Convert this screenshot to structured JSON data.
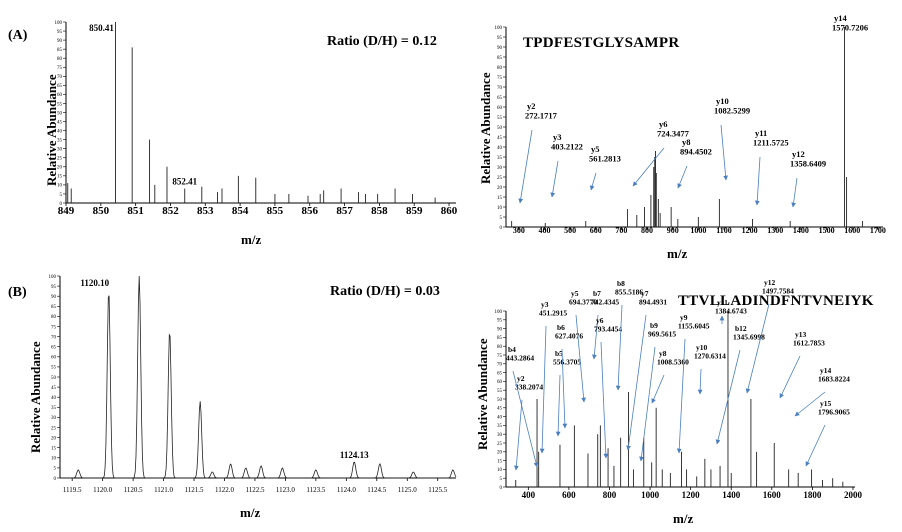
{
  "panel_a": {
    "letter": "(A)",
    "ratio": "Ratio (D/H) = 0.12",
    "peptide": "TPDFESTGLYSAMPR",
    "ylabel_left": "Relative Abundance",
    "ylabel_right": "Relative Abundance",
    "xlabel_left": "m/z",
    "xlabel_right": "m/z"
  },
  "panel_b": {
    "letter": "(B)",
    "ratio": "Ratio (D/H) = 0.03",
    "peptide": "TTVLLADINDFNTVNEIYK",
    "ylabel_left": "Relative Abundance",
    "ylabel_right": "Relative Abundance",
    "xlabel_left": "m/z",
    "xlabel_right": "m/z"
  },
  "chart_data": [
    {
      "id": "a_left",
      "type": "bar",
      "xlim": [
        849,
        860.2
      ],
      "ylim": [
        0,
        100
      ],
      "xticks": [
        849,
        850,
        851,
        852,
        853,
        854,
        855,
        856,
        857,
        858,
        859,
        860
      ],
      "yticks": [
        0,
        5,
        10,
        15,
        20,
        25,
        30,
        35,
        40,
        45,
        50,
        55,
        60,
        65,
        70,
        75,
        80,
        85,
        90,
        95,
        100
      ],
      "xlabel": "m/z",
      "ylabel": "Relative Abundance",
      "peaks": [
        [
          849.05,
          11
        ],
        [
          849.15,
          8
        ],
        [
          850.42,
          100
        ],
        [
          850.9,
          86
        ],
        [
          851.4,
          35
        ],
        [
          851.55,
          10
        ],
        [
          851.9,
          20
        ],
        [
          852.41,
          8
        ],
        [
          852.9,
          9
        ],
        [
          853.35,
          6
        ],
        [
          853.48,
          8
        ],
        [
          853.95,
          15
        ],
        [
          854.45,
          14
        ],
        [
          855.0,
          5
        ],
        [
          855.4,
          5
        ],
        [
          855.95,
          4
        ],
        [
          856.3,
          5
        ],
        [
          856.4,
          7
        ],
        [
          856.9,
          8
        ],
        [
          857.4,
          6
        ],
        [
          857.6,
          5
        ],
        [
          857.95,
          5
        ],
        [
          858.45,
          8
        ],
        [
          858.95,
          5
        ],
        [
          859.6,
          3
        ]
      ],
      "peak_labels": [
        {
          "x": 850.42,
          "text": "850.41"
        },
        {
          "x": 852.41,
          "text": "852.41"
        }
      ]
    },
    {
      "id": "a_right",
      "type": "bar",
      "xlim": [
        250,
        1720
      ],
      "ylim": [
        0,
        100
      ],
      "xticks": [
        300,
        400,
        500,
        600,
        700,
        800,
        900,
        1000,
        1100,
        1200,
        1300,
        1400,
        1500,
        1600,
        1700
      ],
      "yticks": [
        0,
        5,
        10,
        15,
        20,
        25,
        30,
        35,
        40,
        45,
        50,
        55,
        60,
        65,
        70,
        75,
        80,
        85,
        90,
        95,
        100
      ],
      "xlabel": "m/z",
      "ylabel": "Relative Abundance",
      "peaks": [
        [
          272,
          3
        ],
        [
          403,
          2
        ],
        [
          561,
          3
        ],
        [
          724,
          9
        ],
        [
          760,
          6
        ],
        [
          790,
          10
        ],
        [
          815,
          16
        ],
        [
          826,
          30
        ],
        [
          830,
          35
        ],
        [
          833,
          38
        ],
        [
          836,
          27
        ],
        [
          844,
          14
        ],
        [
          851,
          7
        ],
        [
          894,
          10
        ],
        [
          920,
          4
        ],
        [
          1000,
          5
        ],
        [
          1082,
          14
        ],
        [
          1211,
          4
        ],
        [
          1358,
          3
        ],
        [
          1570,
          100
        ],
        [
          1578,
          25
        ],
        [
          1640,
          3
        ]
      ],
      "peak_labels": [
        {
          "x": 272.1717,
          "text": [
            "y2",
            "272.1717"
          ]
        },
        {
          "x": 403.2122,
          "text": [
            "y3",
            "403.2122"
          ]
        },
        {
          "x": 561.2813,
          "text": [
            "y5",
            "561.2813"
          ]
        },
        {
          "x": 724.3477,
          "text": [
            "y6",
            "724.3477"
          ]
        },
        {
          "x": 894.4502,
          "text": [
            "y8",
            "894.4502"
          ]
        },
        {
          "x": 1082.5299,
          "text": [
            "y10",
            "1082.5299"
          ]
        },
        {
          "x": 1211.5725,
          "text": [
            "y11",
            "1211.5725"
          ]
        },
        {
          "x": 1358.6409,
          "text": [
            "y12",
            "1358.6409"
          ]
        },
        {
          "x": 1570.7206,
          "text": [
            "y14",
            "1570.7206"
          ]
        }
      ]
    },
    {
      "id": "b_left",
      "type": "line",
      "xlim": [
        1119.3,
        1125.8
      ],
      "ylim": [
        0,
        100
      ],
      "xticks": [
        1119.5,
        1120.0,
        1120.5,
        1121.0,
        1121.5,
        1122.0,
        1122.5,
        1123.0,
        1123.5,
        1124.0,
        1124.5,
        1125.0,
        1125.5
      ],
      "yticks": [
        0,
        5,
        10,
        15,
        20,
        25,
        30,
        35,
        40,
        45,
        50,
        55,
        60,
        65,
        70,
        75,
        80,
        85,
        90,
        95,
        100
      ],
      "xlabel": "m/z",
      "ylabel": "Relative Abundance",
      "peaks": [
        [
          1119.6,
          4
        ],
        [
          1120.1,
          93
        ],
        [
          1120.6,
          100
        ],
        [
          1121.1,
          73
        ],
        [
          1121.6,
          38
        ],
        [
          1121.8,
          3
        ],
        [
          1122.1,
          7
        ],
        [
          1122.35,
          5
        ],
        [
          1122.6,
          6
        ],
        [
          1122.95,
          5
        ],
        [
          1123.5,
          4
        ],
        [
          1124.13,
          8
        ],
        [
          1124.55,
          7
        ],
        [
          1125.1,
          3
        ],
        [
          1125.75,
          4
        ]
      ],
      "peak_labels": [
        {
          "x": 1120.1,
          "text": "1120.10"
        },
        {
          "x": 1124.13,
          "text": "1124.13"
        }
      ]
    },
    {
      "id": "b_right",
      "type": "bar",
      "xlim": [
        290,
        2010
      ],
      "ylim": [
        0,
        100
      ],
      "xticks": [
        400,
        600,
        800,
        1000,
        1200,
        1400,
        1600,
        1800,
        2000
      ],
      "yticks": [
        0,
        5,
        10,
        15,
        20,
        25,
        30,
        35,
        40,
        45,
        50,
        55,
        60,
        65,
        70,
        75,
        80,
        85,
        90,
        95,
        100
      ],
      "xlabel": "m/z",
      "ylabel": "Relative Abundance",
      "peaks": [
        [
          338,
          4
        ],
        [
          443,
          50
        ],
        [
          451,
          20
        ],
        [
          556,
          24
        ],
        [
          627,
          35
        ],
        [
          694,
          19
        ],
        [
          742,
          30
        ],
        [
          755,
          35
        ],
        [
          793,
          22
        ],
        [
          822,
          12
        ],
        [
          855,
          28
        ],
        [
          894,
          54
        ],
        [
          918,
          10
        ],
        [
          969,
          28
        ],
        [
          1008,
          14
        ],
        [
          1030,
          45
        ],
        [
          1060,
          10
        ],
        [
          1100,
          8
        ],
        [
          1155,
          20
        ],
        [
          1180,
          10
        ],
        [
          1230,
          6
        ],
        [
          1270,
          16
        ],
        [
          1300,
          10
        ],
        [
          1345,
          12
        ],
        [
          1384,
          100
        ],
        [
          1400,
          8
        ],
        [
          1497,
          50
        ],
        [
          1525,
          20
        ],
        [
          1612,
          25
        ],
        [
          1683,
          10
        ],
        [
          1730,
          8
        ],
        [
          1796,
          10
        ],
        [
          1850,
          4
        ],
        [
          1900,
          5
        ],
        [
          1950,
          3
        ]
      ],
      "peak_labels": [
        {
          "x": 338.2074,
          "text": [
            "y2",
            "338.2074"
          ]
        },
        {
          "x": 443.2864,
          "text": [
            "b4",
            "443.2864"
          ]
        },
        {
          "x": 451.2915,
          "text": [
            "y3",
            "451.2915"
          ]
        },
        {
          "x": 556.3705,
          "text": [
            "b5",
            "556.3705"
          ]
        },
        {
          "x": 627.4076,
          "text": [
            "b6",
            "627.4076"
          ]
        },
        {
          "x": 694.377,
          "text": [
            "y5",
            "694.3770"
          ]
        },
        {
          "x": 742.4345,
          "text": [
            "b7",
            "742.4345"
          ]
        },
        {
          "x": 793.4454,
          "text": [
            "y6",
            "793.4454"
          ]
        },
        {
          "x": 855.5186,
          "text": [
            "b8",
            "855.5186"
          ]
        },
        {
          "x": 894.4931,
          "text": [
            "y7",
            "894.4931"
          ]
        },
        {
          "x": 969.5615,
          "text": [
            "b9",
            "969.5615"
          ]
        },
        {
          "x": 1008.536,
          "text": [
            "y8",
            "1008.5360"
          ]
        },
        {
          "x": 1155.6045,
          "text": [
            "y9",
            "1155.6045"
          ]
        },
        {
          "x": 1270.6314,
          "text": [
            "y10",
            "1270.6314"
          ]
        },
        {
          "x": 1384.6743,
          "text": [
            "y11",
            "1384.6743"
          ]
        },
        {
          "x": 1345.6998,
          "text": [
            "b12",
            "1345.6998"
          ]
        },
        {
          "x": 1497.7584,
          "text": [
            "y12",
            "1497.7584"
          ]
        },
        {
          "x": 1612.7853,
          "text": [
            "y13",
            "1612.7853"
          ]
        },
        {
          "x": 1683.8224,
          "text": [
            "y14",
            "1683.8224"
          ]
        },
        {
          "x": 1796.9065,
          "text": [
            "y15",
            "1796.9065"
          ]
        }
      ]
    }
  ]
}
